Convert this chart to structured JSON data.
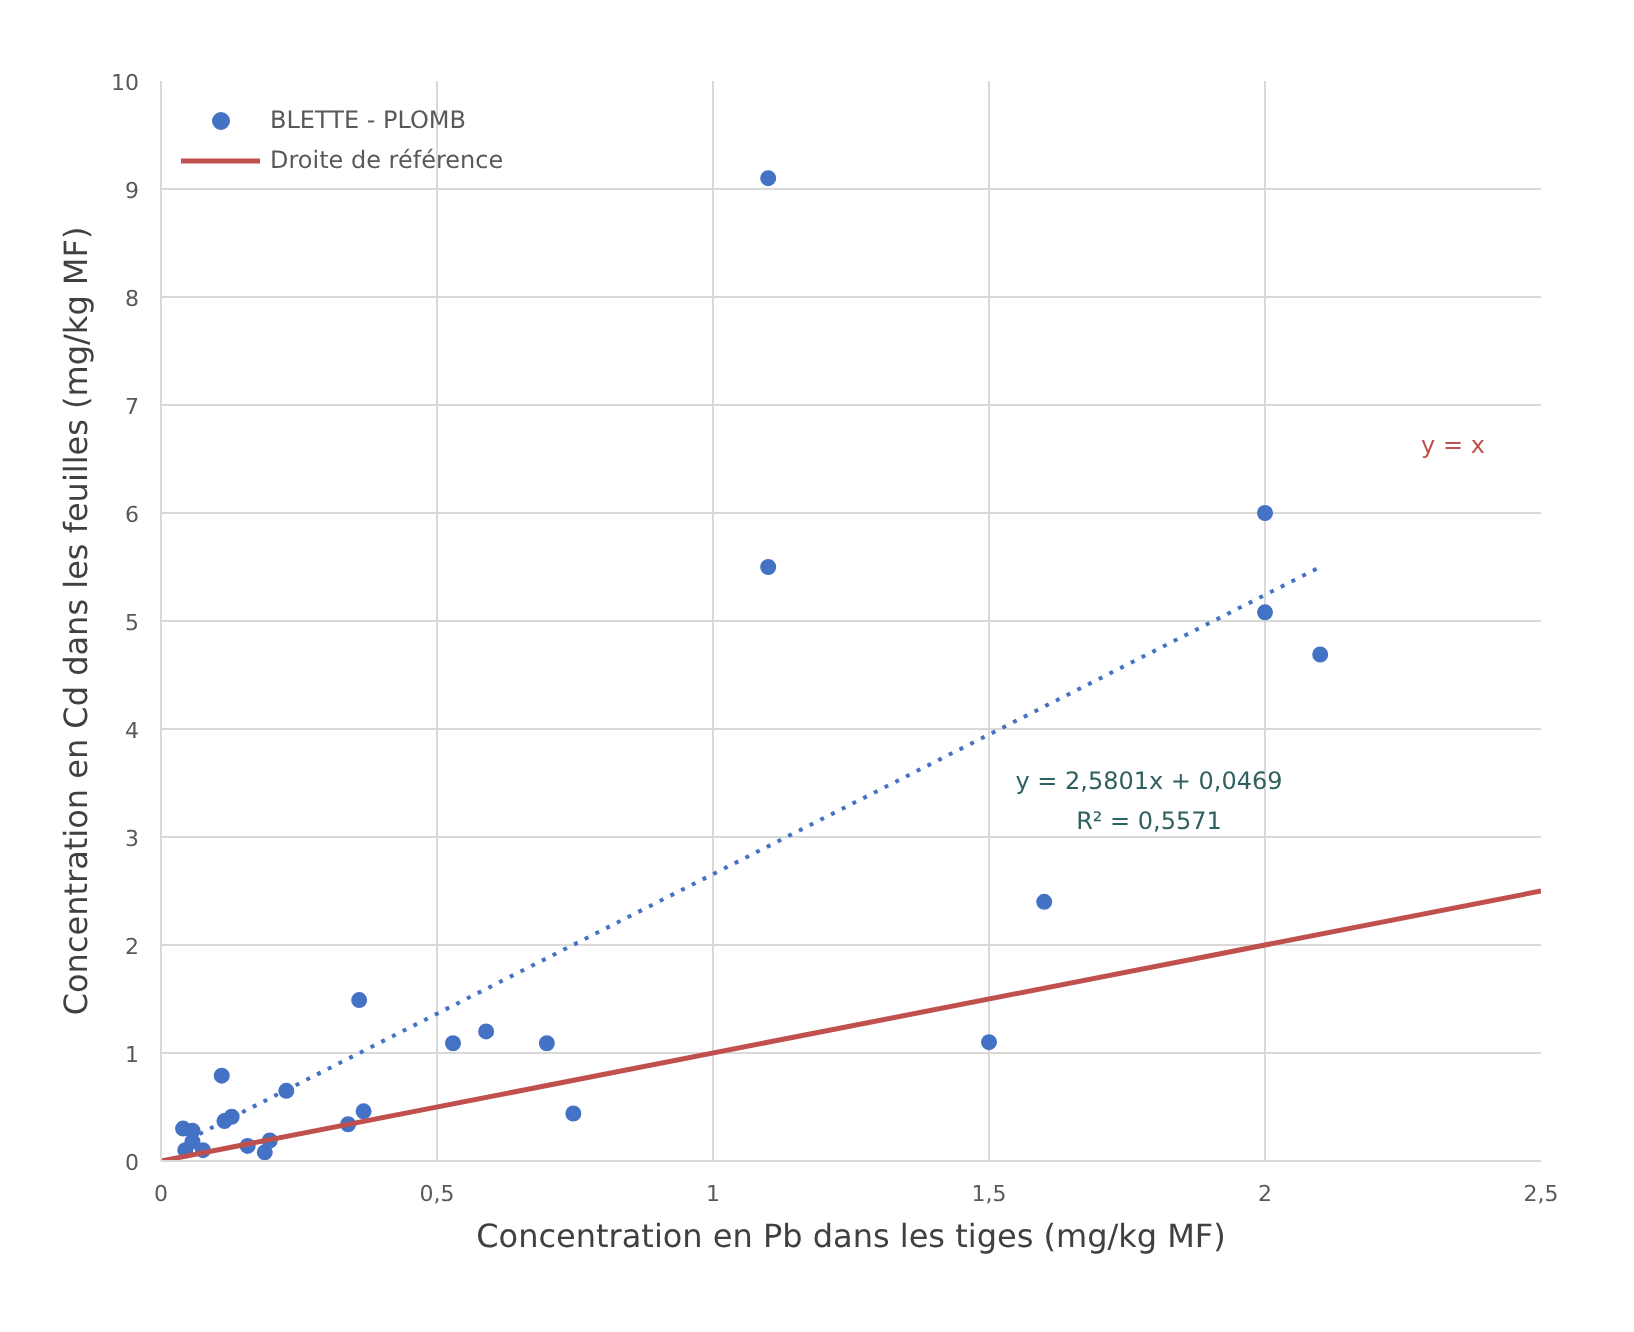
{
  "chart_data": {
    "type": "scatter",
    "xlabel": "Concentration en Pb dans les tiges (mg/kg MF)",
    "ylabel": "Concentration en Cd dans les feuilles (mg/kg MF)",
    "xlim": [
      0,
      2.5
    ],
    "ylim": [
      0,
      10
    ],
    "xticks": [
      0,
      {
        "value": 0.5,
        "label": "0,5"
      },
      1,
      {
        "value": 1.5,
        "label": "1,5"
      },
      2,
      {
        "value": 2.5,
        "label": "2,5"
      }
    ],
    "yticks": [
      0,
      1,
      2,
      3,
      4,
      5,
      6,
      7,
      8,
      9,
      10
    ],
    "grid": true,
    "legend": "top left",
    "marker": "circle",
    "series": [
      {
        "name": "BLETTE - PLOMB",
        "color": "#4472c4",
        "x": [
          0.04,
          0.057,
          0.044,
          0.057,
          0.076,
          0.11,
          0.115,
          0.128,
          0.157,
          0.188,
          0.197,
          0.227,
          0.339,
          0.359,
          0.367,
          0.529,
          0.589,
          0.699,
          0.747,
          1.1,
          1.1,
          1.5,
          1.6,
          2.0,
          2.0,
          2.1
        ],
        "values": [
          0.3,
          0.28,
          0.1,
          0.18,
          0.1,
          0.79,
          0.37,
          0.41,
          0.14,
          0.08,
          0.19,
          0.65,
          0.34,
          1.49,
          0.46,
          1.09,
          1.2,
          1.09,
          0.44,
          9.1,
          5.5,
          1.1,
          2.4,
          6.0,
          5.08,
          4.69
        ]
      },
      {
        "type": "line",
        "color": "#4472c4",
        "line_style": "dotted",
        "marker": "none",
        "x": [
          0.05,
          2.1
        ],
        "values": [
          0.2,
          5.5
        ]
      },
      {
        "name": "Droite de référence",
        "type": "line",
        "color": "#c0504d",
        "line_style": "solid",
        "marker": "none",
        "x": [
          0,
          2.5
        ],
        "values": [
          0,
          2.5
        ]
      }
    ],
    "annotations": [
      "y = x",
      "y = 2,5801x + 0,0469",
      "R² = 0,5571"
    ]
  }
}
